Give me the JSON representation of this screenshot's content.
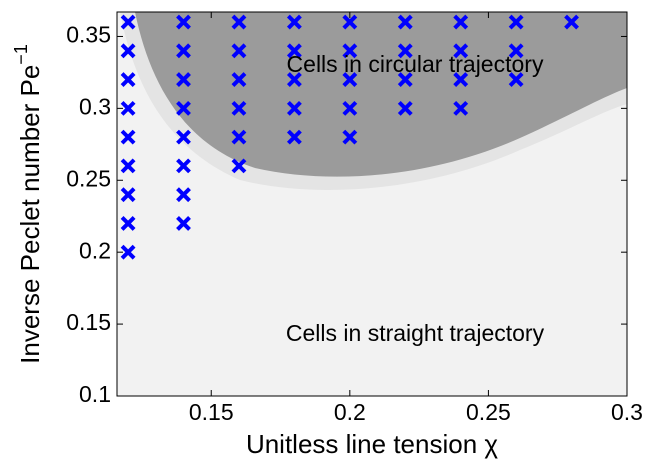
{
  "chart_data": {
    "type": "scatter",
    "xlabel": "Unitless line tension χ",
    "ylabel": "Inverse Peclet number Pe",
    "ylabel_sup": "−1",
    "annotations": [
      "Cells in circular trajectory",
      "Cells in straight trajectory"
    ],
    "xlim": [
      0.116,
      0.3
    ],
    "ylim": [
      0.1,
      0.367
    ],
    "xticks": [
      0.15,
      0.2,
      0.25,
      0.3
    ],
    "yticks": [
      0.1,
      0.15,
      0.2,
      0.25,
      0.3,
      0.35
    ],
    "series": [
      {
        "color": "#0000ff",
        "x": [
          0.12,
          0.12,
          0.12,
          0.12,
          0.12,
          0.12,
          0.12,
          0.12,
          0.12,
          0.14,
          0.14,
          0.14,
          0.14,
          0.14,
          0.14,
          0.14,
          0.14,
          0.16,
          0.16,
          0.16,
          0.16,
          0.16,
          0.16,
          0.18,
          0.18,
          0.18,
          0.18,
          0.18,
          0.2,
          0.2,
          0.2,
          0.2,
          0.2,
          0.22,
          0.22,
          0.22,
          0.22,
          0.24,
          0.24,
          0.24,
          0.24,
          0.26,
          0.26,
          0.26,
          0.28
        ],
        "y": [
          0.2,
          0.22,
          0.24,
          0.26,
          0.28,
          0.3,
          0.32,
          0.34,
          0.36,
          0.22,
          0.24,
          0.26,
          0.28,
          0.3,
          0.32,
          0.34,
          0.36,
          0.26,
          0.28,
          0.3,
          0.32,
          0.34,
          0.36,
          0.28,
          0.3,
          0.32,
          0.34,
          0.36,
          0.28,
          0.3,
          0.32,
          0.34,
          0.36,
          0.3,
          0.32,
          0.34,
          0.36,
          0.3,
          0.32,
          0.34,
          0.36,
          0.32,
          0.34,
          0.36,
          0.36
        ]
      }
    ]
  }
}
